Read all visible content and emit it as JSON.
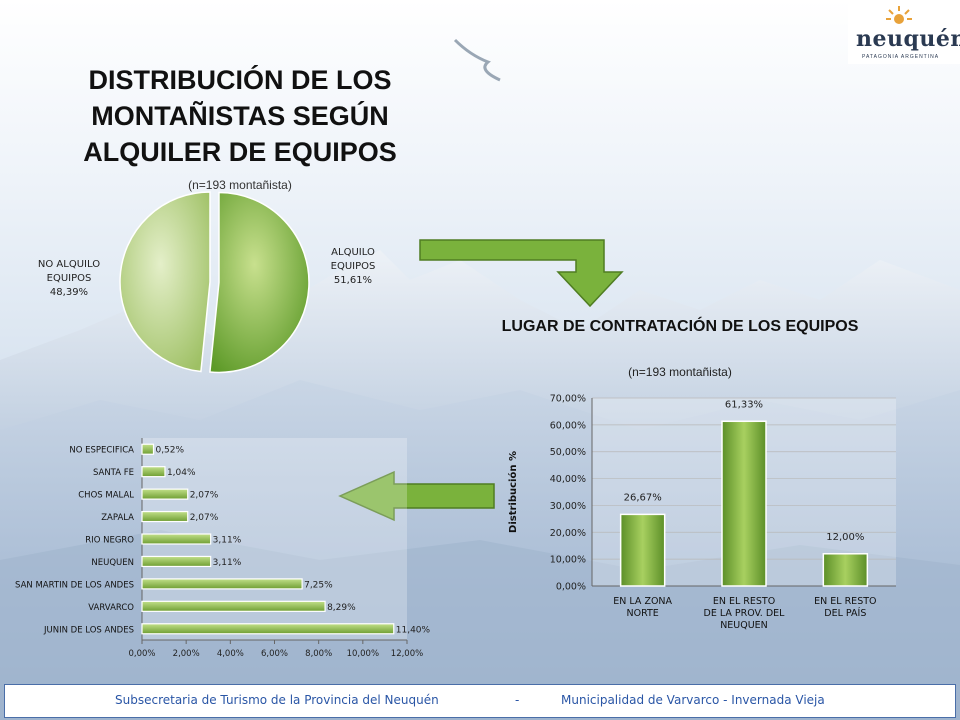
{
  "logo": {
    "brand": "neuquén",
    "tagline": "PATAGONIA ARGENTINA"
  },
  "chart1": {
    "title": "DISTRIBUCIÓN DE LOS MONTAÑISTAS SEGÚN ALQUILER DE EQUIPOS",
    "subtitle": "(n=193 montañista)"
  },
  "chart2": {
    "title": "LUGAR DE CONTRATACIÓN DE LOS EQUIPOS",
    "subtitle": "(n=193 montañista)"
  },
  "pie_labels": {
    "alquilo": [
      "ALQUILO",
      "EQUIPOS",
      "51,61%"
    ],
    "no_alquilo": [
      "NO ALQUILO",
      "EQUIPOS",
      "48,39%"
    ]
  },
  "footer": {
    "left": "Subsecretaria de Turismo de la Provincia del Neuquén",
    "sep": "-",
    "right": "Municipalidad de Varvarco - Invernada Vieja"
  },
  "colors": {
    "green_light": "#b6d67a",
    "green_dark": "#5c8f28",
    "arrow": "#7ab23c"
  },
  "chart_data": [
    {
      "type": "pie",
      "categories": [
        "ALQUILO EQUIPOS",
        "NO ALQUILO EQUIPOS"
      ],
      "values": [
        51.61,
        48.39
      ],
      "data_labels": [
        "51,61%",
        "48,39%"
      ]
    },
    {
      "type": "bar",
      "orientation": "vertical",
      "categories": [
        [
          "EN LA ZONA",
          "NORTE"
        ],
        [
          "EN EL RESTO",
          "DE LA PROV. DEL",
          "NEUQUEN"
        ],
        [
          "EN EL RESTO",
          "DEL PAÍS"
        ]
      ],
      "values": [
        26.67,
        61.33,
        12.0
      ],
      "data_labels": [
        "26,67%",
        "61,33%",
        "12,00%"
      ],
      "ylabel": "Distribución %",
      "ylim": [
        0,
        70
      ],
      "yticks": [
        "0,00%",
        "10,00%",
        "20,00%",
        "30,00%",
        "40,00%",
        "50,00%",
        "60,00%",
        "70,00%"
      ],
      "grid": true
    },
    {
      "type": "bar",
      "orientation": "horizontal",
      "categories": [
        "JUNIN DE LOS ANDES",
        "VARVARCO",
        "SAN MARTIN DE LOS ANDES",
        "NEUQUEN",
        "RIO NEGRO",
        "ZAPALA",
        "CHOS MALAL",
        "SANTA FE",
        "NO ESPECIFICA"
      ],
      "values": [
        11.4,
        8.29,
        7.25,
        3.11,
        3.11,
        2.07,
        2.07,
        1.04,
        0.52
      ],
      "data_labels": [
        "11,40%",
        "8,29%",
        "7,25%",
        "3,11%",
        "3,11%",
        "2,07%",
        "2,07%",
        "1,04%",
        "0,52%"
      ],
      "xlim": [
        0,
        12
      ],
      "xticks": [
        "0,00%",
        "2,00%",
        "4,00%",
        "6,00%",
        "8,00%",
        "10,00%",
        "12,00%"
      ],
      "grid": false
    }
  ]
}
